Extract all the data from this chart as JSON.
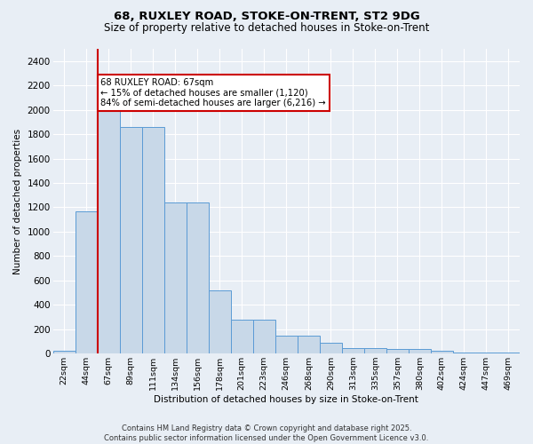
{
  "title1": "68, RUXLEY ROAD, STOKE-ON-TRENT, ST2 9DG",
  "title2": "Size of property relative to detached houses in Stoke-on-Trent",
  "xlabel": "Distribution of detached houses by size in Stoke-on-Trent",
  "ylabel": "Number of detached properties",
  "bar_labels": [
    "22sqm",
    "44sqm",
    "67sqm",
    "89sqm",
    "111sqm",
    "134sqm",
    "156sqm",
    "178sqm",
    "201sqm",
    "223sqm",
    "246sqm",
    "268sqm",
    "290sqm",
    "313sqm",
    "335sqm",
    "357sqm",
    "380sqm",
    "402sqm",
    "424sqm",
    "447sqm",
    "469sqm"
  ],
  "bar_values": [
    25,
    1170,
    2000,
    1860,
    1860,
    1240,
    1240,
    520,
    275,
    275,
    150,
    150,
    90,
    45,
    45,
    40,
    40,
    20,
    5,
    5,
    5
  ],
  "bar_color": "#c8d8e8",
  "bar_edge_color": "#5b9bd5",
  "vline_index": 2,
  "vline_color": "#cc0000",
  "annotation_text": "68 RUXLEY ROAD: 67sqm\n← 15% of detached houses are smaller (1,120)\n84% of semi-detached houses are larger (6,216) →",
  "annotation_box_color": "#cc0000",
  "ylim_max": 2500,
  "yticks": [
    0,
    200,
    400,
    600,
    800,
    1000,
    1200,
    1400,
    1600,
    1800,
    2000,
    2200,
    2400
  ],
  "bg_color": "#e8eef5",
  "footer1": "Contains HM Land Registry data © Crown copyright and database right 2025.",
  "footer2": "Contains public sector information licensed under the Open Government Licence v3.0."
}
